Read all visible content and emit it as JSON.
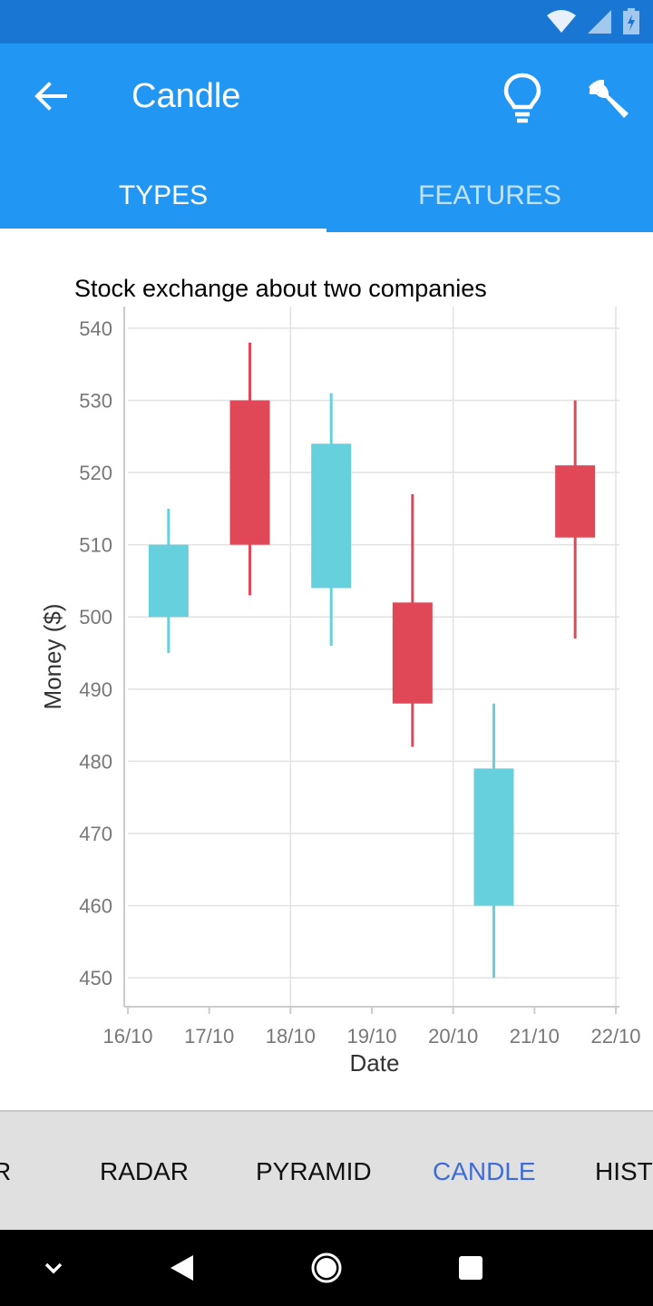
{
  "app": {
    "title": "Candle"
  },
  "icons": {
    "back": "arrow-left-icon",
    "bulb": "lightbulb-icon",
    "wrench": "wrench-icon",
    "wifi": "wifi-icon",
    "signal": "signal-icon",
    "battery": "battery-charging-icon"
  },
  "tabs": [
    {
      "label": "TYPES",
      "active": true
    },
    {
      "label": "FEATURES",
      "active": false
    }
  ],
  "colors": {
    "primary": "#2196f3",
    "status_bar": "#1976d2",
    "increasing": "#66d1dc",
    "decreasing": "#e04857",
    "active_nav": "#3f6cd6"
  },
  "chart_data": {
    "type": "candlestick",
    "title": "Stock exchange about two companies",
    "xlabel": "Date",
    "ylabel": "Money ($)",
    "ylim": [
      446,
      543
    ],
    "yticks": [
      450,
      460,
      470,
      480,
      490,
      500,
      510,
      520,
      530,
      540
    ],
    "xticks": [
      "16/10",
      "17/10",
      "18/10",
      "19/10",
      "20/10",
      "21/10",
      "22/10"
    ],
    "grid": true,
    "candles": [
      {
        "date": "16/10",
        "open": 500,
        "close": 510,
        "low": 495,
        "high": 515
      },
      {
        "date": "17/10",
        "open": 530,
        "close": 510,
        "low": 503,
        "high": 538
      },
      {
        "date": "18/10",
        "open": 504,
        "close": 524,
        "low": 496,
        "high": 531
      },
      {
        "date": "19/10",
        "open": 502,
        "close": 488,
        "low": 482,
        "high": 517
      },
      {
        "date": "20/10",
        "open": 460,
        "close": 479,
        "low": 450,
        "high": 488
      },
      {
        "date": "21/10",
        "open": 521,
        "close": 511,
        "low": 497,
        "high": 530
      }
    ]
  },
  "bottom_nav": [
    {
      "label": "R",
      "active": false
    },
    {
      "label": "RADAR",
      "active": false
    },
    {
      "label": "PYRAMID",
      "active": false
    },
    {
      "label": "CANDLE",
      "active": true
    },
    {
      "label": "HIST",
      "active": false
    }
  ],
  "system_nav": {
    "collapse": "chevron-down-icon",
    "back": "triangle-back-icon",
    "home": "circle-home-icon",
    "recents": "square-recents-icon"
  }
}
